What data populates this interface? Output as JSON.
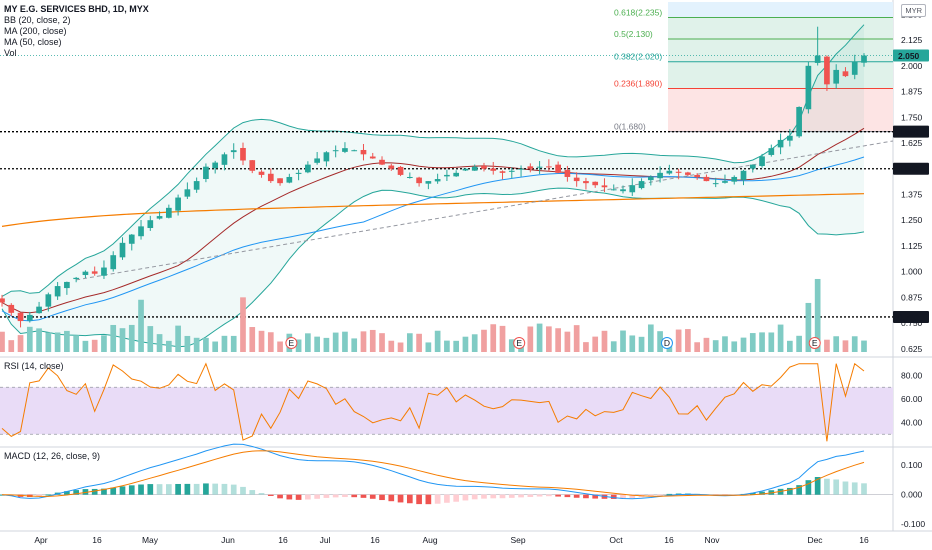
{
  "legend": {
    "symbol": "MY E.G. SERVICES BHD, 1D, MYX",
    "lines": [
      "BB (20, close, 2)",
      "MA (200, close)",
      "MA (50, close)",
      "Vol"
    ]
  },
  "currency": "MYR",
  "colors": {
    "up": "#26a69a",
    "down": "#ef5350",
    "up_vol": "#80cbc4",
    "down_vol": "#f0a0a0",
    "bb": "#26a69a",
    "ma200": "#f57c00",
    "ma50": "#2196f3",
    "ma20": "#a52a2a",
    "rsi": "#f57c00",
    "rsi_band": "#e9dcf7",
    "macd": "#2196f3",
    "signal": "#f57c00"
  },
  "chart_data": [
    {
      "type": "candlestick",
      "pane": "price",
      "y_ticks": [
        "2.250",
        "2.125",
        "2.000",
        "1.875",
        "1.750",
        "1.625",
        "1.375",
        "1.250",
        "1.125",
        "1.000",
        "0.875",
        "0.750",
        "0.625"
      ],
      "ylim": [
        0.6,
        2.31
      ],
      "series": [
        {
          "name": "Close",
          "values": [
            0.85,
            0.8,
            0.76,
            0.79,
            0.83,
            0.89,
            0.93,
            0.95,
            0.97,
            1.0,
            0.99,
            1.02,
            1.08,
            1.14,
            1.18,
            1.22,
            1.25,
            1.27,
            1.31,
            1.36,
            1.4,
            1.44,
            1.51,
            1.53,
            1.57,
            1.59,
            1.54,
            1.49,
            1.47,
            1.44,
            1.43,
            1.46,
            1.48,
            1.52,
            1.55,
            1.58,
            1.59,
            1.6,
            1.59,
            1.57,
            1.55,
            1.52,
            1.5,
            1.47,
            1.46,
            1.43,
            1.44,
            1.45,
            1.47,
            1.48,
            1.5,
            1.51,
            1.5,
            1.49,
            1.48,
            1.49,
            1.5,
            1.5,
            1.51,
            1.51,
            1.48,
            1.46,
            1.44,
            1.43,
            1.42,
            1.41,
            1.4,
            1.4,
            1.42,
            1.44,
            1.46,
            1.48,
            1.49,
            1.48,
            1.47,
            1.46,
            1.44,
            1.43,
            1.44,
            1.46,
            1.49,
            1.52,
            1.56,
            1.6,
            1.64,
            1.66,
            1.8,
            2.0,
            2.05,
            1.91,
            1.98,
            1.95,
            2.02,
            2.05
          ]
        }
      ],
      "bollinger": {
        "name": "BB (20, close, 2)"
      },
      "ma200": {
        "name": "MA (200, close)"
      },
      "ma50": {
        "name": "MA (50, close)"
      },
      "levels": [
        {
          "value": 1.68,
          "label": "1.680"
        },
        {
          "value": 1.5,
          "label": "1.500"
        },
        {
          "value": 0.78,
          "label": "0.780"
        }
      ],
      "last_price": {
        "value": 2.05,
        "label": "2.050"
      },
      "fibonacci": [
        {
          "ratio": "0.618",
          "price": "2.235",
          "value": 2.235
        },
        {
          "ratio": "0.5",
          "price": "2.130",
          "value": 2.13
        },
        {
          "ratio": "0.382",
          "price": "2.020",
          "value": 2.02
        },
        {
          "ratio": "0.236",
          "price": "1.890",
          "value": 1.89
        },
        {
          "ratio": "0",
          "price": "1.680",
          "value": 1.68
        }
      ],
      "events": [
        {
          "date_index": 47,
          "label": "E"
        },
        {
          "date_index": 84,
          "label": "E"
        },
        {
          "date_index": 108,
          "label": "D"
        },
        {
          "date_index": 132,
          "label": "E"
        }
      ]
    },
    {
      "type": "line",
      "pane": "rsi",
      "title": "RSI (14, close)",
      "y_ticks": [
        "80.00",
        "60.00",
        "40.00"
      ],
      "ylim": [
        20,
        94
      ],
      "band": [
        30,
        70
      ]
    },
    {
      "type": "line",
      "pane": "macd",
      "title": "MACD (12, 26, close, 9)",
      "y_ticks": [
        "0.100",
        "0.000",
        "-0.100"
      ],
      "ylim": [
        -0.12,
        0.155
      ]
    }
  ],
  "x_axis": {
    "labels": [
      "Apr",
      "16",
      "May",
      "Jun",
      "16",
      "Jul",
      "16",
      "Aug",
      "Sep",
      "Oct",
      "16",
      "Nov",
      "Dec",
      "16"
    ]
  }
}
